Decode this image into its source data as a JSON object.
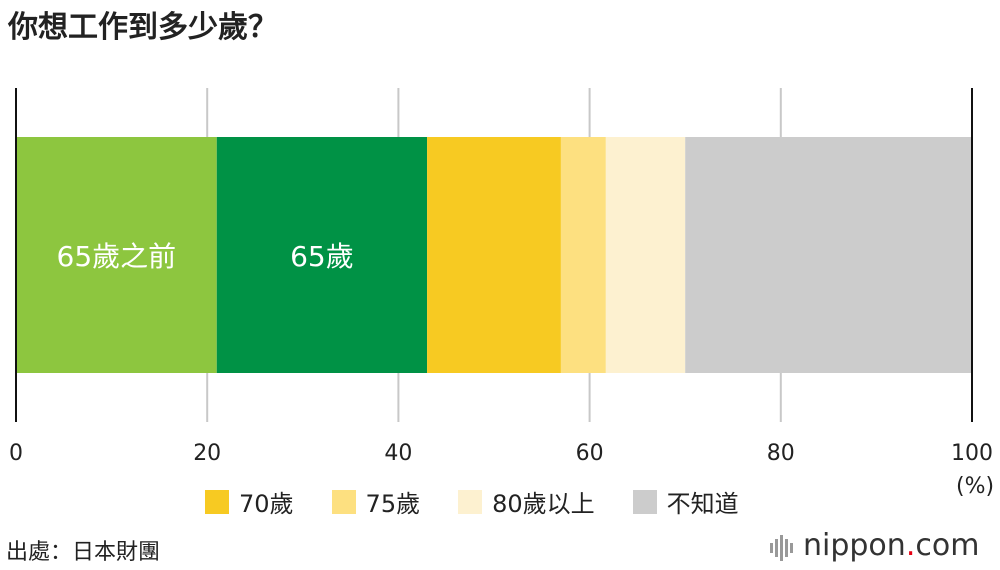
{
  "title": "你想工作到多少歲？",
  "chart_data": {
    "type": "bar",
    "stacked": true,
    "orientation": "horizontal",
    "xlim": [
      0,
      100
    ],
    "xticks": [
      "0",
      "20",
      "40",
      "60",
      "80",
      "100"
    ],
    "unit": "(%)",
    "grid": true,
    "legend_position": "bottom",
    "series": [
      {
        "name": "65歲之前",
        "value": 21,
        "color": "#8dc63f",
        "label": "65歲之前"
      },
      {
        "name": "65歲",
        "value": 22,
        "color": "#009245",
        "label": "65歲"
      },
      {
        "name": "70歲",
        "value": 14,
        "color": "#f7ca22"
      },
      {
        "name": "75歲",
        "value": 4.7,
        "color": "#fde080"
      },
      {
        "name": "80歲以上",
        "value": 8.3,
        "color": "#fdf1d0"
      },
      {
        "name": "不知道",
        "value": 30,
        "color": "#cccccc"
      }
    ]
  },
  "legend": [
    {
      "label": "70歲",
      "color": "#f7ca22"
    },
    {
      "label": "75歲",
      "color": "#fde080"
    },
    {
      "label": "80歲以上",
      "color": "#fdf1d0"
    },
    {
      "label": "不知道",
      "color": "#cccccc"
    }
  ],
  "source": "出處：日本財團",
  "brand": {
    "name": "nippon",
    "dot": ".",
    "tld": "com"
  }
}
